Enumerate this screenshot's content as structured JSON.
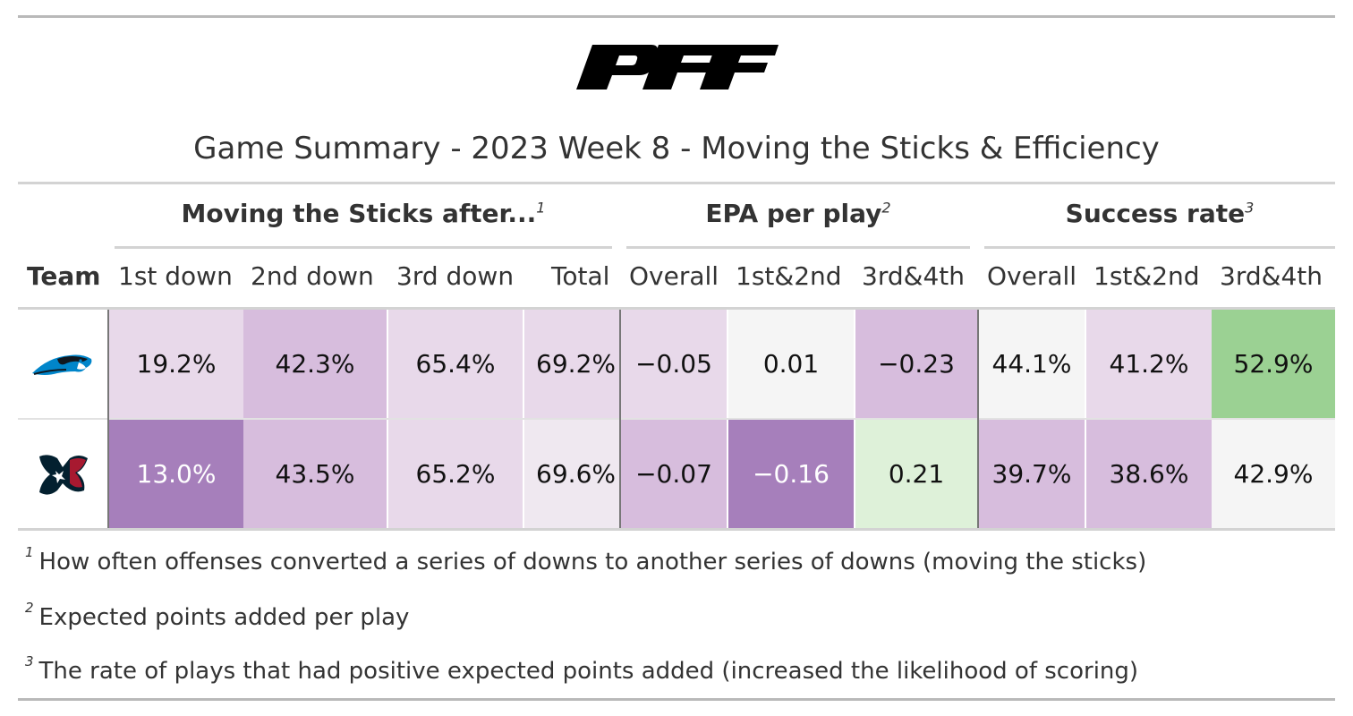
{
  "logo_text": "PFF",
  "title": "Game Summary - 2023 Week 8 - Moving the Sticks & Efficiency",
  "spanners": [
    {
      "label": "Moving the Sticks after...",
      "note": "1"
    },
    {
      "label": "EPA per play",
      "note": "2"
    },
    {
      "label": "Success rate",
      "note": "3"
    }
  ],
  "columns": [
    "Team",
    "1st down",
    "2nd down",
    "3rd down",
    "Total",
    "Overall",
    "1st&2nd",
    "3rd&4th",
    "Overall",
    "1st&2nd",
    "3rd&4th"
  ],
  "rows": [
    {
      "team_icon": "carolina-panthers-logo-icon",
      "cells": [
        {
          "value": "19.2%",
          "bg": "#e8d9ea",
          "fg": "#111111"
        },
        {
          "value": "42.3%",
          "bg": "#d7bddd",
          "fg": "#111111"
        },
        {
          "value": "65.4%",
          "bg": "#e8d9ea",
          "fg": "#111111"
        },
        {
          "value": "69.2%",
          "bg": "#e8d9ea",
          "fg": "#111111"
        },
        {
          "value": "−0.05",
          "bg": "#e8d9ea",
          "fg": "#111111"
        },
        {
          "value": "0.01",
          "bg": "#f5f5f5",
          "fg": "#111111"
        },
        {
          "value": "−0.23",
          "bg": "#d7bddd",
          "fg": "#111111"
        },
        {
          "value": "44.1%",
          "bg": "#f5f5f5",
          "fg": "#111111"
        },
        {
          "value": "41.2%",
          "bg": "#e8d9ea",
          "fg": "#111111"
        },
        {
          "value": "52.9%",
          "bg": "#9bd193",
          "fg": "#111111"
        }
      ]
    },
    {
      "team_icon": "houston-texans-logo-icon",
      "cells": [
        {
          "value": "13.0%",
          "bg": "#a67fbb",
          "fg": "#ffffff"
        },
        {
          "value": "43.5%",
          "bg": "#d7bddd",
          "fg": "#111111"
        },
        {
          "value": "65.2%",
          "bg": "#e8d9ea",
          "fg": "#111111"
        },
        {
          "value": "69.6%",
          "bg": "#efe8f0",
          "fg": "#111111"
        },
        {
          "value": "−0.07",
          "bg": "#d7bddd",
          "fg": "#111111"
        },
        {
          "value": "−0.16",
          "bg": "#a67fbb",
          "fg": "#ffffff"
        },
        {
          "value": "0.21",
          "bg": "#def1d9",
          "fg": "#111111"
        },
        {
          "value": "39.7%",
          "bg": "#d7bddd",
          "fg": "#111111"
        },
        {
          "value": "38.6%",
          "bg": "#d7bddd",
          "fg": "#111111"
        },
        {
          "value": "42.9%",
          "bg": "#f5f5f5",
          "fg": "#111111"
        }
      ]
    }
  ],
  "footnotes": [
    {
      "mark": "1",
      "text": "How often offenses converted a series of downs to another series of downs (moving the sticks)"
    },
    {
      "mark": "2",
      "text": "Expected points added per play"
    },
    {
      "mark": "3",
      "text": "The rate of plays that had positive expected points added (increased the likelihood of scoring)"
    }
  ]
}
